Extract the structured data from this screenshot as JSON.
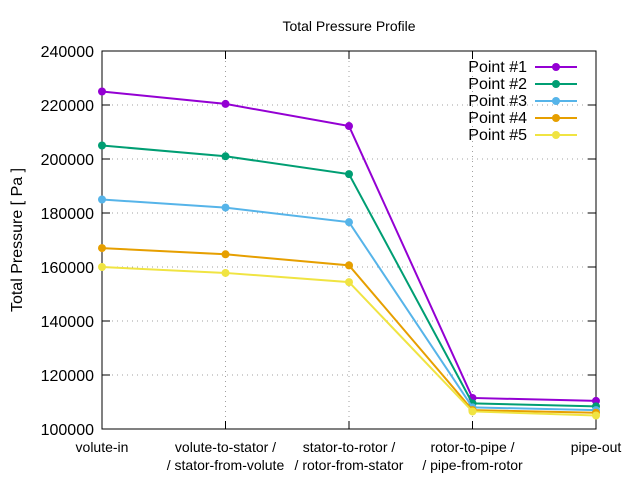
{
  "chart_data": {
    "type": "line",
    "title": "Total Pressure Profile",
    "xlabel": "",
    "ylabel": "Total Pressure [ Pa ]",
    "ylim": [
      100000,
      240000
    ],
    "yticks": [
      100000,
      120000,
      140000,
      160000,
      180000,
      200000,
      220000,
      240000
    ],
    "ytick_labels": [
      "100000",
      "120000",
      "140000",
      "160000",
      "180000",
      "200000",
      "220000",
      "240000"
    ],
    "categories": [
      {
        "line1": "volute-in",
        "line2": ""
      },
      {
        "line1": "volute-to-stator /",
        "line2": "/ stator-from-volute"
      },
      {
        "line1": "stator-to-rotor /",
        "line2": "/ rotor-from-stator"
      },
      {
        "line1": "rotor-to-pipe /",
        "line2": "/ pipe-from-rotor"
      },
      {
        "line1": "pipe-out",
        "line2": ""
      }
    ],
    "grid": true,
    "legend_position": "top-right",
    "series": [
      {
        "name": "Point #1",
        "color": "#9400d3",
        "values": [
          225000,
          220400,
          212200,
          111500,
          110400
        ]
      },
      {
        "name": "Point #2",
        "color": "#009e73",
        "values": [
          205000,
          201000,
          194400,
          109500,
          108400
        ]
      },
      {
        "name": "Point #3",
        "color": "#56b4e9",
        "values": [
          185000,
          182000,
          176600,
          108000,
          107000
        ]
      },
      {
        "name": "Point #4",
        "color": "#e69f00",
        "values": [
          167000,
          164700,
          160600,
          107000,
          106000
        ]
      },
      {
        "name": "Point #5",
        "color": "#f0e442",
        "values": [
          160000,
          157800,
          154400,
          106500,
          105000
        ]
      }
    ]
  }
}
